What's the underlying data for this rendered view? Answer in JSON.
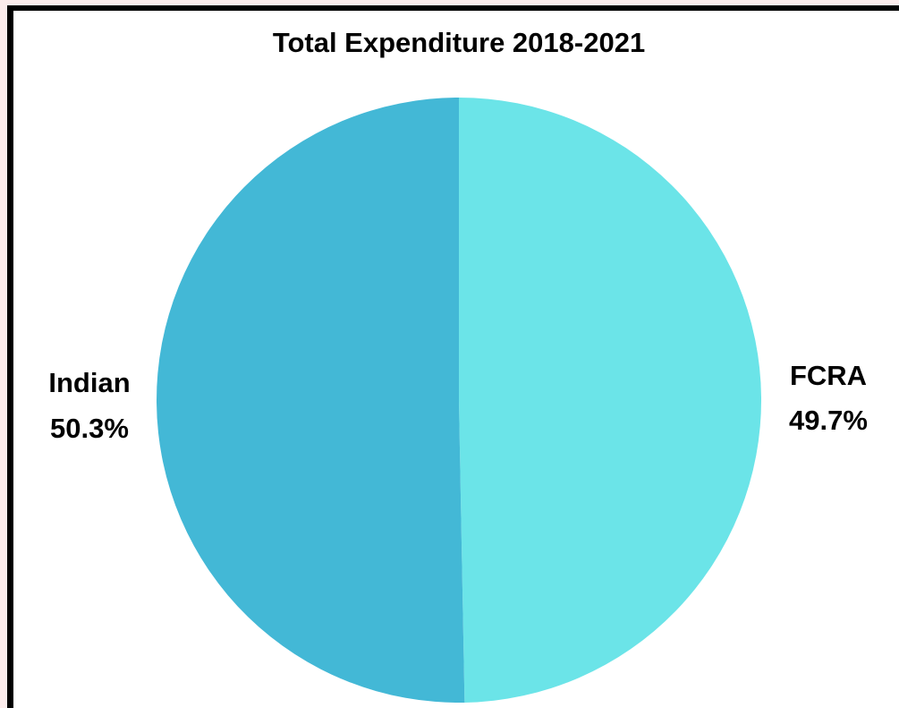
{
  "chart_data": {
    "type": "pie",
    "title": "Total Expenditure 2018-2021",
    "slices": [
      {
        "name": "FCRA",
        "label": "FCRA",
        "value": 49.7,
        "value_label": "49.7%",
        "color": "#6be4e8"
      },
      {
        "name": "Indian",
        "label": "Indian",
        "value": 50.3,
        "value_label": "50.3%",
        "color": "#43b8d6"
      }
    ],
    "start_angle": "12 o'clock",
    "direction": "clockwise",
    "legend": "none"
  },
  "colors": {
    "page_background": "#fbecec",
    "frame_border": "#000000",
    "plot_background": "#ffffff"
  }
}
